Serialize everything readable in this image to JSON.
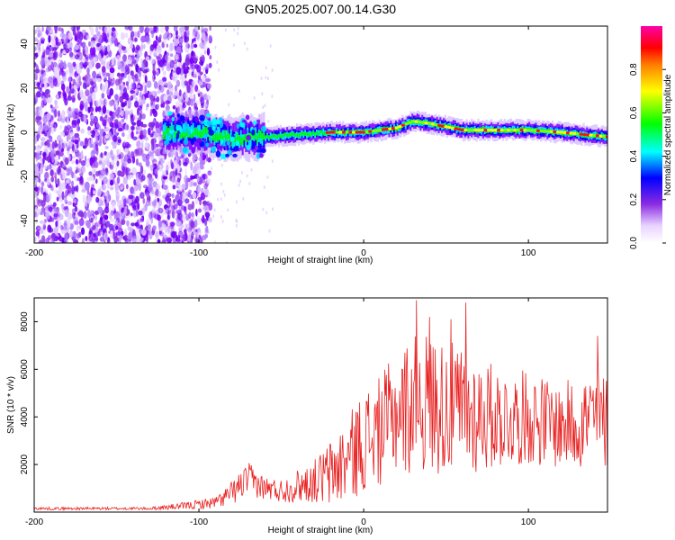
{
  "figure": {
    "title": "GN05.2025.007.00.14.G30"
  },
  "chart_data": [
    {
      "type": "heatmap",
      "xlabel": "Height of straight line (km)",
      "ylabel": "Frequency (Hz)",
      "xlim": [
        -200,
        148
      ],
      "ylim": [
        -50,
        48
      ],
      "xticks": [
        -200,
        -100,
        0,
        100
      ],
      "yticks": [
        -40,
        -20,
        0,
        20,
        40
      ],
      "colorbar": {
        "label": "Normalized spectral amplitude",
        "range": [
          0,
          1
        ],
        "ticks": [
          "0.0",
          "0.2",
          "0.4",
          "0.6",
          "0.8"
        ]
      },
      "ridge": {
        "description_of_trend": "noise region x<-95, onset near -120, ridge near 0 Hz from -60 to 148",
        "x": [
          -120,
          -100,
          -80,
          -70,
          -60,
          -40,
          -20,
          0,
          20,
          30,
          40,
          60,
          80,
          100,
          120,
          148
        ],
        "y": [
          0,
          0,
          -3,
          -2,
          -2,
          -1,
          0,
          0,
          2,
          5,
          4,
          1,
          1,
          1,
          0,
          -2
        ]
      },
      "colors": [
        "#ffffff",
        "#e6d2ff",
        "#b07cff",
        "#7a00ff",
        "#0000ff",
        "#00ffff",
        "#00ff00",
        "#ffff00",
        "#ff0000",
        "#ff00ff"
      ]
    },
    {
      "type": "line",
      "xlabel": "Height of straight line (km)",
      "ylabel": "SNR (10 * v/v)",
      "xlim": [
        -200,
        148
      ],
      "ylim": [
        0,
        9000
      ],
      "xticks": [
        -200,
        -100,
        0,
        100
      ],
      "yticks": [
        2000,
        4000,
        6000,
        8000
      ],
      "color": "#e82020",
      "envelope": {
        "x": [
          -200,
          -130,
          -110,
          -90,
          -80,
          -70,
          -60,
          -50,
          -40,
          -30,
          -20,
          -10,
          0,
          10,
          20,
          30,
          40,
          50,
          60,
          70,
          80,
          90,
          100,
          110,
          120,
          130,
          140,
          148
        ],
        "mean": [
          150,
          150,
          250,
          400,
          800,
          1400,
          1000,
          900,
          1100,
          1300,
          1600,
          2200,
          3000,
          3400,
          4200,
          4500,
          4600,
          4400,
          4200,
          4100,
          4000,
          3900,
          4000,
          3800,
          3600,
          3800,
          3900,
          3800
        ],
        "amp": [
          60,
          60,
          150,
          250,
          500,
          700,
          500,
          500,
          700,
          900,
          1500,
          1800,
          2200,
          2300,
          2600,
          3000,
          3000,
          2800,
          2800,
          2500,
          2200,
          2000,
          2000,
          1900,
          1800,
          2000,
          2200,
          2000
        ]
      },
      "peak_values": [
        {
          "x": 32,
          "y": 8900
        },
        {
          "x": 62,
          "y": 8800
        },
        {
          "x": 40,
          "y": 8200
        },
        {
          "x": 53,
          "y": 8100
        },
        {
          "x": 142,
          "y": 7400
        }
      ]
    }
  ]
}
